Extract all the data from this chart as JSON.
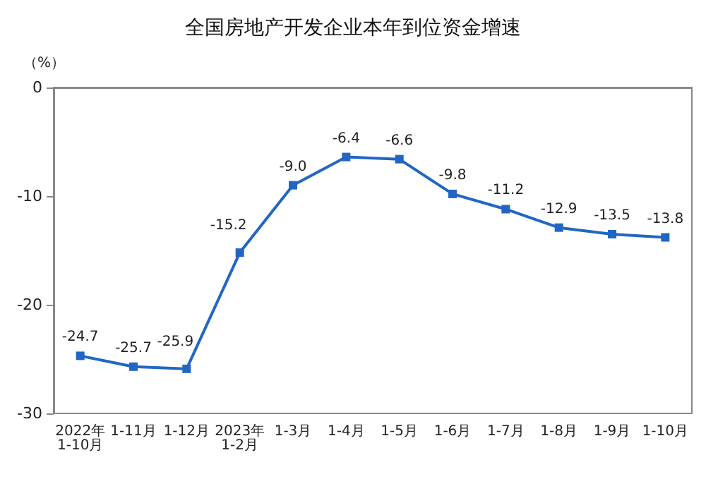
{
  "chart_data": {
    "type": "line",
    "title": "全国房地产开发企业本年到位资金增速",
    "ylabel": "（%）",
    "categories": [
      "2022年\n1-10月",
      "1-11月",
      "1-12月",
      "2023年\n1-2月",
      "1-3月",
      "1-4月",
      "1-5月",
      "1-6月",
      "1-7月",
      "1-8月",
      "1-9月",
      "1-10月"
    ],
    "series": [
      {
        "color": "#2266c4",
        "values": [
          -24.7,
          -25.7,
          -25.9,
          -15.2,
          -9.0,
          -6.4,
          -6.6,
          -9.8,
          -11.2,
          -12.9,
          -13.5,
          -13.8
        ],
        "value_labels": [
          "-24.7",
          "-25.7",
          "-25.9",
          "-15.2",
          "-9.0",
          "-6.4",
          "-6.6",
          "-9.8",
          "-11.2",
          "-12.9",
          "-13.5",
          "-13.8"
        ]
      }
    ],
    "ylim": [
      -30,
      0
    ],
    "yticks": [
      0,
      -10,
      -20,
      -30
    ],
    "grid": false,
    "marker": "square",
    "line_style": "solid"
  }
}
